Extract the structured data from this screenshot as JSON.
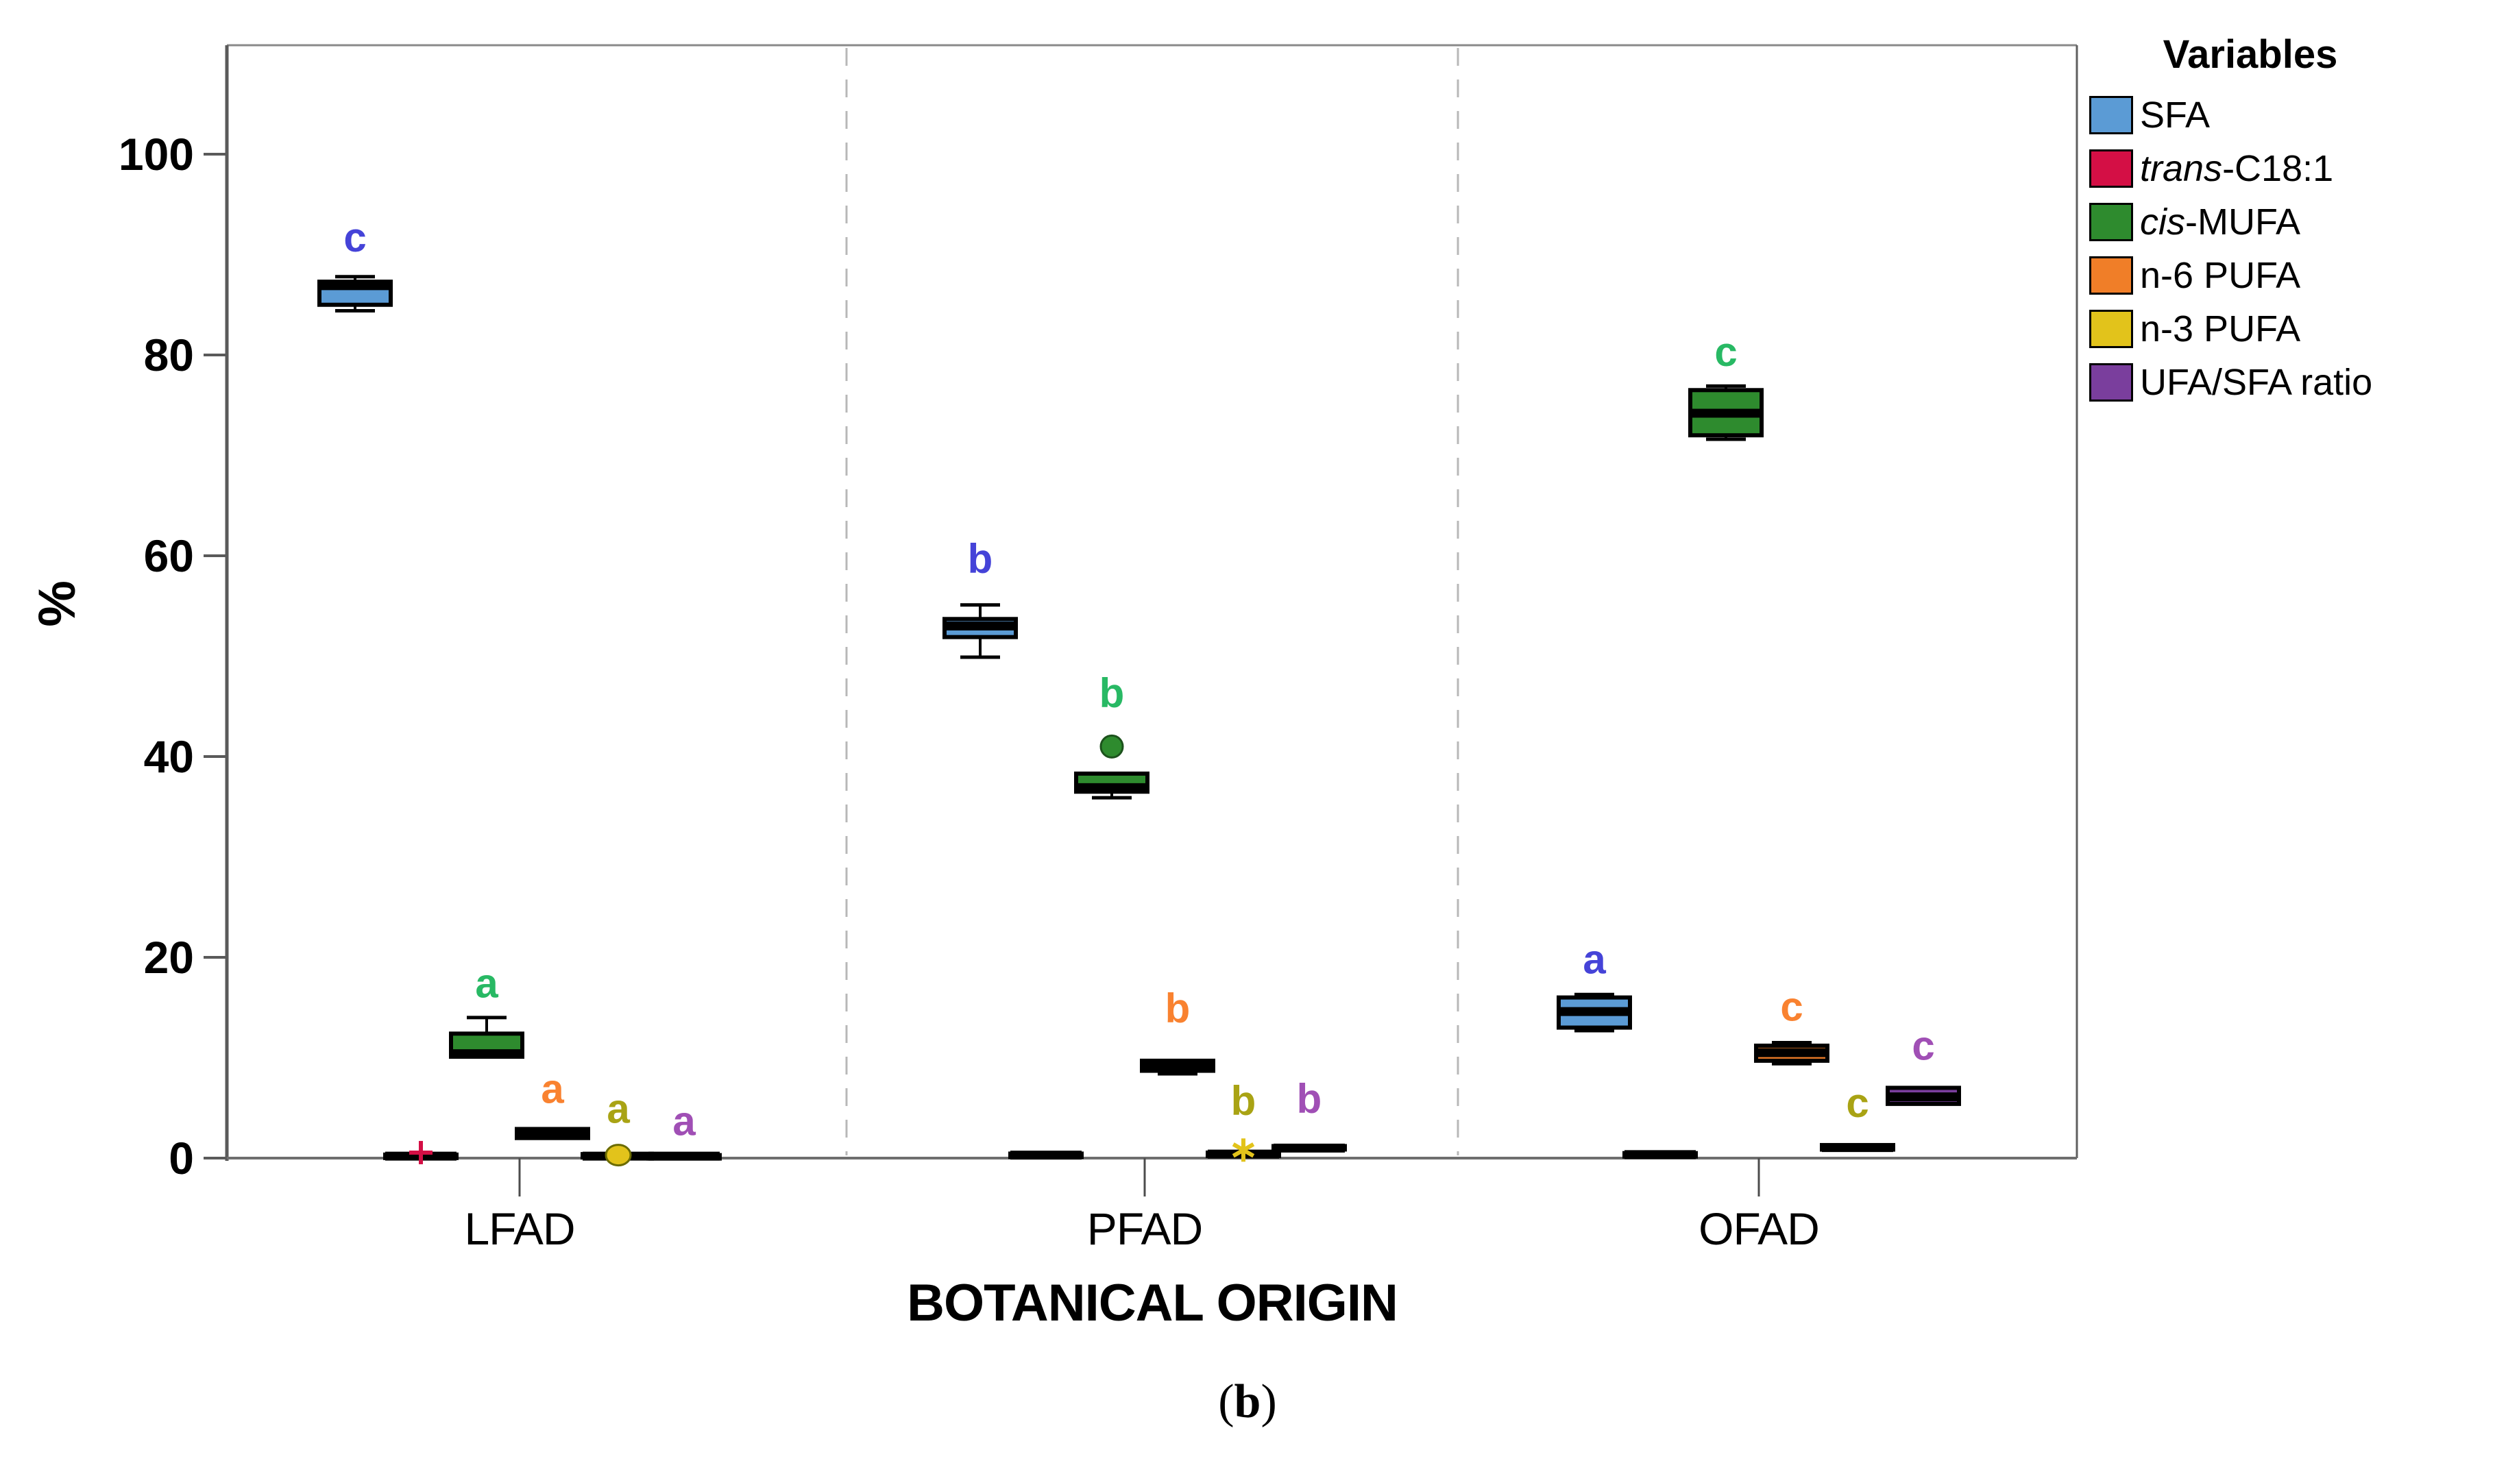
{
  "figure": {
    "ylabel": "%",
    "xlabel": "BOTANICAL ORIGIN",
    "caption": {
      "open": "(",
      "letter": "b",
      "close": ")"
    }
  },
  "chart_data": {
    "type": "boxplot",
    "title": "",
    "xlabel": "BOTANICAL ORIGIN",
    "ylabel": "%",
    "ylim": [
      0,
      112
    ],
    "yticks": [
      0,
      20,
      40,
      60,
      80,
      100
    ],
    "grid": false,
    "group_separator_style": "dashed-vertical-lines",
    "legend_position": "outside-top-right",
    "groups": [
      "LFAD",
      "PFAD",
      "OFAD"
    ],
    "legend": {
      "title": "Variables",
      "items": [
        {
          "prefix": "",
          "label": "SFA",
          "color": "#5B9BD5"
        },
        {
          "prefix": "trans",
          "label": "-C18:1",
          "color": "#D40F45"
        },
        {
          "prefix": "cis",
          "label": "-MUFA",
          "color": "#2E8B2E"
        },
        {
          "prefix": "",
          "label": "n-6 PUFA",
          "color": "#F07E28"
        },
        {
          "prefix": "",
          "label": "n-3 PUFA",
          "color": "#E2C31B"
        },
        {
          "prefix": "",
          "label": "UFA/SFA ratio",
          "color": "#7A3E9D"
        }
      ]
    },
    "series": [
      {
        "name": "SFA",
        "color": "#5B9BD5",
        "letter_color": "#4543D8",
        "boxes": [
          {
            "group": "LFAD",
            "whisker_low": 84.4,
            "q1": 85.0,
            "median": 86.9,
            "q3": 87.3,
            "whisker_high": 87.8,
            "letter": "c",
            "letter_y": 91.7
          },
          {
            "group": "PFAD",
            "whisker_low": 49.9,
            "q1": 51.9,
            "median": 53.0,
            "q3": 53.7,
            "whisker_high": 55.1,
            "letter": "b",
            "letter_y": 59.7
          },
          {
            "group": "OFAD",
            "whisker_low": 12.7,
            "q1": 13.0,
            "median": 14.6,
            "q3": 16.0,
            "whisker_high": 16.3,
            "letter": "a",
            "letter_y": 19.8
          }
        ]
      },
      {
        "name": "trans-C18:1",
        "color": "#D40F45",
        "letter_color": "#D40F45",
        "boxes": [
          {
            "group": "LFAD",
            "whisker_low": 0.05,
            "q1": 0.1,
            "median": 0.2,
            "q3": 0.35,
            "whisker_high": 0.4,
            "outliers": [
              {
                "shape": "plus",
                "y": 0.55
              }
            ]
          },
          {
            "group": "PFAD",
            "whisker_low": 0.1,
            "q1": 0.15,
            "median": 0.3,
            "q3": 0.45,
            "whisker_high": 0.5
          },
          {
            "group": "OFAD",
            "whisker_low": 0.1,
            "q1": 0.2,
            "median": 0.35,
            "q3": 0.5,
            "whisker_high": 0.55
          }
        ]
      },
      {
        "name": "cis-MUFA",
        "color": "#2E8B2E",
        "letter_color": "#28B964",
        "boxes": [
          {
            "group": "LFAD",
            "whisker_low": 9.9,
            "q1": 10.1,
            "median": 10.4,
            "q3": 12.4,
            "whisker_high": 14.0,
            "letter": "a",
            "letter_y": 17.4
          },
          {
            "group": "PFAD",
            "whisker_low": 35.9,
            "q1": 36.5,
            "median": 36.9,
            "q3": 38.3,
            "whisker_high": 38.3,
            "outliers": [
              {
                "shape": "dot",
                "y": 41.0
              }
            ],
            "letter": "b",
            "letter_y": 46.3
          },
          {
            "group": "OFAD",
            "whisker_low": 71.6,
            "q1": 72.0,
            "median": 74.2,
            "q3": 76.5,
            "whisker_high": 76.9,
            "letter": "c",
            "letter_y": 80.3
          }
        ]
      },
      {
        "name": "n-6 PUFA",
        "color": "#F07E28",
        "letter_color": "#F98230",
        "boxes": [
          {
            "group": "LFAD",
            "whisker_low": 1.8,
            "q1": 2.0,
            "median": 2.4,
            "q3": 2.9,
            "whisker_high": 3.1,
            "letter": "a",
            "letter_y": 6.9
          },
          {
            "group": "PFAD",
            "whisker_low": 8.4,
            "q1": 8.7,
            "median": 9.2,
            "q3": 9.7,
            "whisker_high": 9.9,
            "letter": "b",
            "letter_y": 14.9
          },
          {
            "group": "OFAD",
            "whisker_low": 9.4,
            "q1": 9.7,
            "median": 10.5,
            "q3": 11.2,
            "whisker_high": 11.5,
            "letter": "c",
            "letter_y": 15.1
          }
        ]
      },
      {
        "name": "n-3 PUFA",
        "color": "#E2C31B",
        "letter_color": "#A9A314",
        "boxes": [
          {
            "group": "LFAD",
            "whisker_low": 0.05,
            "q1": 0.1,
            "median": 0.2,
            "q3": 0.4,
            "whisker_high": 0.45,
            "outliers": [
              {
                "shape": "circle",
                "y": 0.3
              }
            ],
            "letter": "a",
            "letter_y": 4.9
          },
          {
            "group": "PFAD",
            "whisker_low": 0.15,
            "q1": 0.25,
            "median": 0.4,
            "q3": 0.55,
            "whisker_high": 0.6,
            "outliers": [
              {
                "shape": "star",
                "y": 0.8
              }
            ],
            "letter": "b",
            "letter_y": 5.7
          },
          {
            "group": "OFAD",
            "whisker_low": 0.75,
            "q1": 0.85,
            "median": 1.05,
            "q3": 1.3,
            "whisker_high": 1.4,
            "letter": "c",
            "letter_y": 5.5
          }
        ]
      },
      {
        "name": "UFA/SFA ratio",
        "color": "#7A3E9D",
        "letter_color": "#A04FB5",
        "boxes": [
          {
            "group": "LFAD",
            "whisker_low": 0.05,
            "q1": 0.1,
            "median": 0.2,
            "q3": 0.3,
            "whisker_high": 0.35,
            "letter": "a",
            "letter_y": 3.7
          },
          {
            "group": "PFAD",
            "whisker_low": 0.8,
            "q1": 0.9,
            "median": 1.0,
            "q3": 1.2,
            "whisker_high": 1.25,
            "letter": "b",
            "letter_y": 5.9
          },
          {
            "group": "OFAD",
            "whisker_low": 5.3,
            "q1": 5.4,
            "median": 6.1,
            "q3": 7.0,
            "whisker_high": 7.2,
            "letter": "c",
            "letter_y": 11.2
          }
        ]
      }
    ]
  }
}
